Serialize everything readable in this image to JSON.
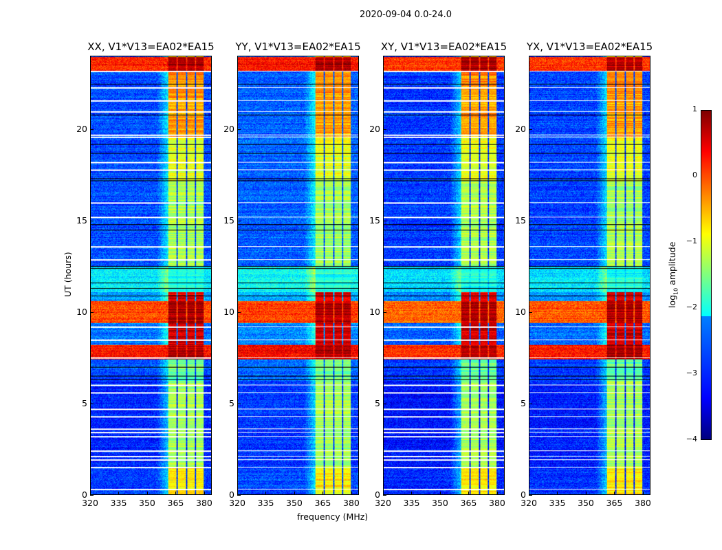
{
  "suptitle": "2020-09-04 0.0-24.0",
  "chart_data": {
    "type": "heatmap",
    "xlabel": "frequency (MHz)",
    "ylabel": "UT (hours)",
    "xlim": [
      320,
      384
    ],
    "ylim": [
      0,
      24
    ],
    "xticks": [
      320,
      335,
      350,
      365,
      380
    ],
    "yticks": [
      0,
      5,
      10,
      15,
      20
    ],
    "colorbar": {
      "label": "log10 amplitude",
      "label_main": "log",
      "label_sub": "10",
      "label_rest": " amplitude",
      "range": [
        -4,
        1
      ],
      "ticks": [
        1,
        0,
        -1,
        -2,
        -3,
        -4
      ],
      "colormap": "jet"
    },
    "panels": [
      {
        "title": "XX, V1*V13=EA02*EA15",
        "bg_offset": 0
      },
      {
        "title": "YY, V1*V13=EA02*EA15",
        "bg_offset": 0.1
      },
      {
        "title": "XY, V1*V13=EA02*EA15",
        "bg_offset": -0.1
      },
      {
        "title": "YX, V1*V13=EA02*EA15",
        "bg_offset": -0.05
      }
    ],
    "rfi_subbands_mhz": [
      [
        361,
        365.3
      ],
      [
        366,
        370.3
      ],
      [
        371,
        375.3
      ],
      [
        376,
        380
      ]
    ],
    "time_segments": [
      {
        "from": 0,
        "to": 1.5,
        "background": -3.1,
        "rfi": -0.8
      },
      {
        "from": 1.5,
        "to": 6.2,
        "background": -3.2,
        "rfi": -1.3
      },
      {
        "from": 6.2,
        "to": 7.4,
        "background": -3.0,
        "rfi": -1.6
      },
      {
        "from": 7.4,
        "to": 8.2,
        "background": 0.3,
        "rfi": 0.8
      },
      {
        "from": 8.2,
        "to": 9.4,
        "background": -2.8,
        "rfi": 0.6
      },
      {
        "from": 9.4,
        "to": 10.6,
        "background": 0.0,
        "rfi": 0.8
      },
      {
        "from": 10.6,
        "to": 11.1,
        "background": -2.6,
        "rfi": 0.5
      },
      {
        "from": 11.1,
        "to": 12.5,
        "background": -2.2,
        "rfi": -2.0
      },
      {
        "from": 12.5,
        "to": 17.2,
        "background": -3.0,
        "rfi": -1.3
      },
      {
        "from": 17.2,
        "to": 19.6,
        "background": -3.0,
        "rfi": -1.0
      },
      {
        "from": 19.6,
        "to": 22.0,
        "background": -3.0,
        "rfi": -0.4
      },
      {
        "from": 22.0,
        "to": 23.2,
        "background": -3.0,
        "rfi": -0.3
      },
      {
        "from": 23.2,
        "to": 24.0,
        "background": 0.2,
        "rfi": 0.8
      }
    ],
    "flagged_white_hours": [
      0.3,
      1.5,
      1.9,
      2.1,
      2.4,
      3.2,
      3.4,
      3.6,
      4.3,
      4.7,
      5.6,
      6.0,
      7.5,
      8.5,
      9.2,
      12.9,
      13.6,
      15.2,
      16.0,
      17.8,
      18.2,
      19.6,
      19.7,
      21.0,
      21.6,
      22.3,
      23.2
    ],
    "flagged_black_hours": [
      6.3,
      6.5,
      7.0,
      10.9,
      11.3,
      11.6,
      12.4,
      12.5,
      14.5,
      14.8,
      17.2,
      17.3,
      18.7,
      19.2,
      20.8,
      22.5
    ]
  }
}
